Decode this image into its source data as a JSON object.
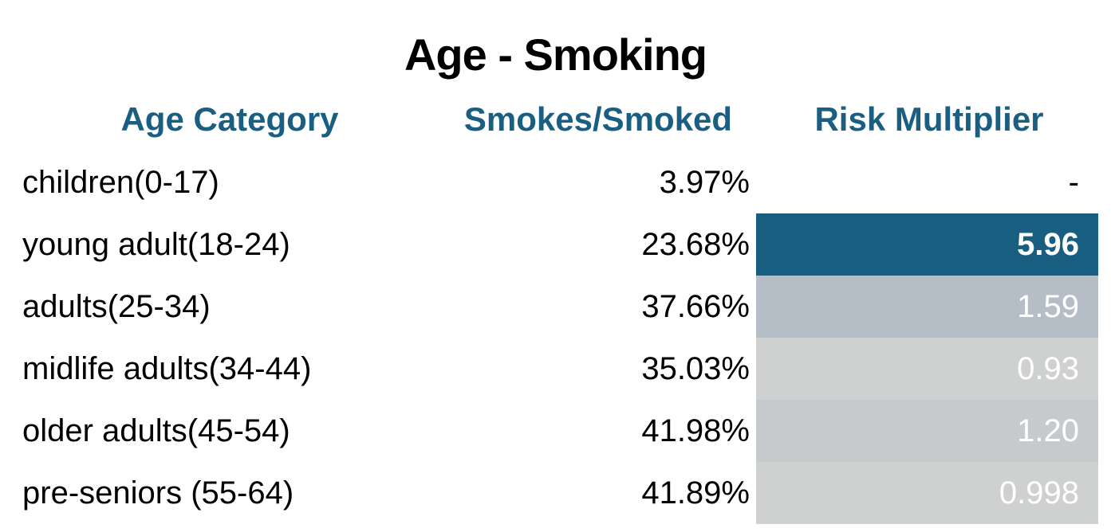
{
  "chart_data": {
    "type": "table",
    "title": "Age - Smoking",
    "columns": [
      "Age Category",
      "Smokes/Smoked",
      "Risk Multiplier"
    ],
    "rows": [
      {
        "age": "children(0-17)",
        "smokes": "3.97%",
        "risk": "-",
        "risk_value": null
      },
      {
        "age": "young adult(18-24)",
        "smokes": "23.68%",
        "risk": "5.96",
        "risk_value": 5.96
      },
      {
        "age": "adults(25-34)",
        "smokes": "37.66%",
        "risk": "1.59",
        "risk_value": 1.59
      },
      {
        "age": "midlife adults(34-44)",
        "smokes": "35.03%",
        "risk": "0.93",
        "risk_value": 0.93
      },
      {
        "age": "older adults(45-54)",
        "smokes": "41.98%",
        "risk": "1.20",
        "risk_value": 1.2
      },
      {
        "age": "pre-seniors (55-64)",
        "smokes": "41.89%",
        "risk": "0.998",
        "risk_value": 0.998
      }
    ],
    "colors": {
      "header_text": "#1a5f82",
      "title_text": "#000000",
      "risk_high_fill": "#175e80",
      "risk_mid_fill": "#b5bec6",
      "risk_low_fill": "#cfd0d0",
      "risk_mid_low_fill": "#c7cacd",
      "risk_text_light": "#ffffff",
      "risk_text_dark": "#000000"
    }
  }
}
